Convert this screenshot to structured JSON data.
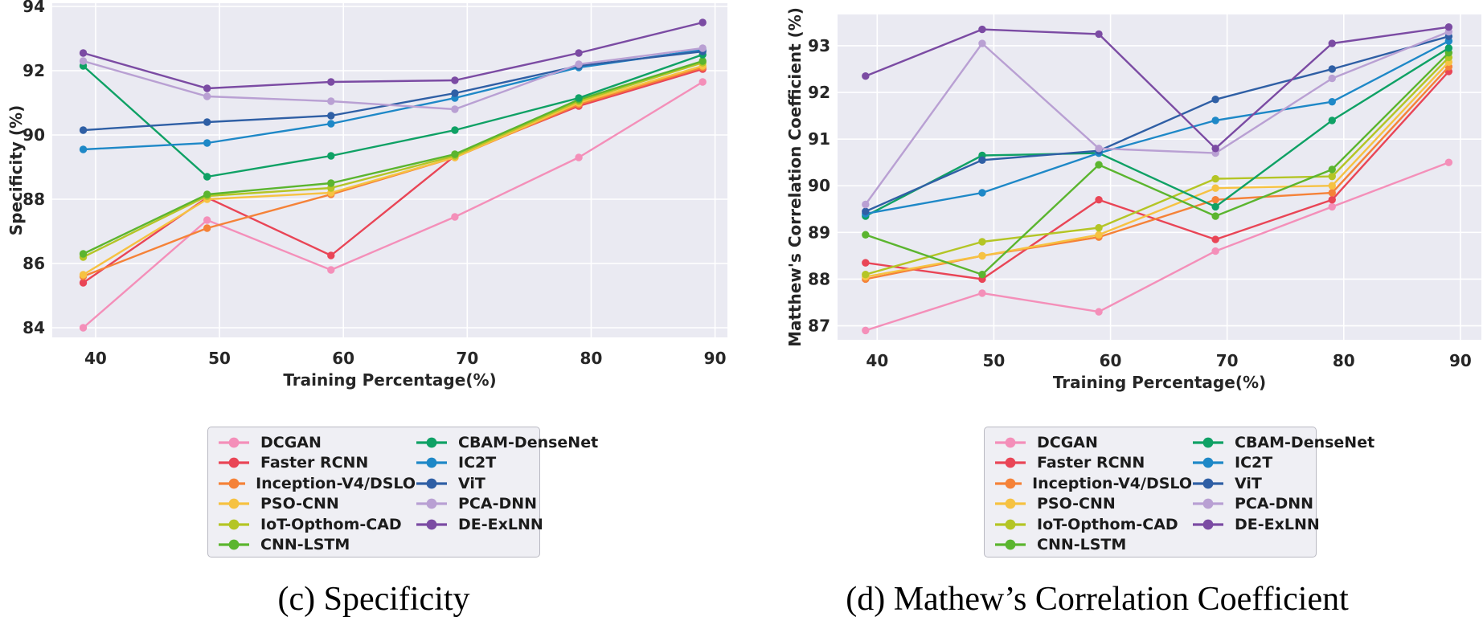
{
  "figure": {
    "background": "#ffffff",
    "plot_background": "#eaeaf2",
    "grid_color": "#ffffff",
    "tick_color": "#262626",
    "legend_background": "#efeff4",
    "legend_border": "#b9b9c2"
  },
  "chart_data": [
    {
      "type": "line",
      "caption": "(c) Specificity",
      "xlabel": "Training Percentage(%)",
      "ylabel": "Specificity (%)",
      "x": [
        39,
        49,
        59,
        69,
        79,
        89
      ],
      "xticks": [
        40,
        50,
        60,
        70,
        80,
        90
      ],
      "yticks": [
        84,
        86,
        88,
        90,
        92,
        94
      ],
      "xlim": [
        36.5,
        91.0
      ],
      "ylim": [
        83.7,
        94.1
      ],
      "grid": true,
      "legend_position": "below",
      "series": [
        {
          "name": "DCGAN",
          "color": "#F48FB9",
          "values": [
            84.0,
            87.35,
            85.8,
            87.45,
            89.3,
            91.65
          ]
        },
        {
          "name": "Faster RCNN",
          "color": "#E94556",
          "values": [
            85.4,
            88.05,
            86.25,
            89.35,
            90.9,
            92.05
          ]
        },
        {
          "name": "Inception-V4/DSLO",
          "color": "#F58238",
          "values": [
            85.6,
            87.1,
            88.15,
            89.3,
            90.95,
            92.1
          ]
        },
        {
          "name": "PSO-CNN",
          "color": "#F6C242",
          "values": [
            85.65,
            88.0,
            88.2,
            89.3,
            91.0,
            92.15
          ]
        },
        {
          "name": "IoT-Opthom-CAD",
          "color": "#B4C525",
          "values": [
            86.2,
            88.1,
            88.35,
            89.35,
            91.05,
            92.25
          ]
        },
        {
          "name": "CNN-LSTM",
          "color": "#5BB52F",
          "values": [
            86.3,
            88.15,
            88.5,
            89.4,
            91.1,
            92.3
          ]
        },
        {
          "name": "CBAM-DenseNet",
          "color": "#0FA165",
          "values": [
            92.15,
            88.7,
            89.35,
            90.15,
            91.15,
            92.5
          ]
        },
        {
          "name": "IC2T",
          "color": "#1E88C7",
          "values": [
            89.55,
            89.75,
            90.35,
            91.15,
            92.1,
            92.65
          ]
        },
        {
          "name": "ViT",
          "color": "#2F5FA5",
          "values": [
            90.15,
            90.4,
            90.6,
            91.3,
            92.15,
            92.6
          ]
        },
        {
          "name": "PCA-DNN",
          "color": "#B9A0D3",
          "values": [
            92.3,
            91.2,
            91.05,
            90.8,
            92.2,
            92.7
          ]
        },
        {
          "name": "DE-ExLNN",
          "color": "#7B4BA3",
          "values": [
            92.55,
            91.45,
            91.65,
            91.7,
            92.55,
            93.5
          ]
        }
      ]
    },
    {
      "type": "line",
      "caption": "(d) Mathew’s Correlation Coefficient",
      "xlabel": "Training Percentage(%)",
      "ylabel": "Matthew's Correlation Coefficient (%)",
      "x": [
        39,
        49,
        59,
        69,
        79,
        89
      ],
      "xticks": [
        40,
        50,
        60,
        70,
        80,
        90
      ],
      "yticks": [
        87,
        88,
        89,
        90,
        91,
        92,
        93
      ],
      "xlim": [
        36.6,
        91.8
      ],
      "ylim": [
        86.7,
        93.67
      ],
      "grid": true,
      "legend_position": "below",
      "series": [
        {
          "name": "DCGAN",
          "color": "#F48FB9",
          "values": [
            86.9,
            87.7,
            87.3,
            88.6,
            89.55,
            90.5
          ]
        },
        {
          "name": "Faster RCNN",
          "color": "#E94556",
          "values": [
            88.35,
            88.0,
            89.7,
            88.85,
            89.7,
            92.45
          ]
        },
        {
          "name": "Inception-V4/DSLO",
          "color": "#F58238",
          "values": [
            88.0,
            88.5,
            88.9,
            89.7,
            89.85,
            92.55
          ]
        },
        {
          "name": "PSO-CNN",
          "color": "#F6C242",
          "values": [
            88.05,
            88.5,
            88.95,
            89.95,
            90.0,
            92.65
          ]
        },
        {
          "name": "IoT-Opthom-CAD",
          "color": "#B4C525",
          "values": [
            88.1,
            88.8,
            89.1,
            90.15,
            90.2,
            92.75
          ]
        },
        {
          "name": "CNN-LSTM",
          "color": "#5BB52F",
          "values": [
            88.95,
            88.1,
            90.45,
            89.35,
            90.35,
            92.85
          ]
        },
        {
          "name": "CBAM-DenseNet",
          "color": "#0FA165",
          "values": [
            89.35,
            90.65,
            90.7,
            89.55,
            91.4,
            92.95
          ]
        },
        {
          "name": "IC2T",
          "color": "#1E88C7",
          "values": [
            89.4,
            89.85,
            90.7,
            91.4,
            91.8,
            93.1
          ]
        },
        {
          "name": "ViT",
          "color": "#2F5FA5",
          "values": [
            89.45,
            90.55,
            90.75,
            91.85,
            92.5,
            93.2
          ]
        },
        {
          "name": "PCA-DNN",
          "color": "#B9A0D3",
          "values": [
            89.6,
            93.05,
            90.8,
            90.7,
            92.3,
            93.3
          ]
        },
        {
          "name": "DE-ExLNN",
          "color": "#7B4BA3",
          "values": [
            92.35,
            93.35,
            93.25,
            90.8,
            93.05,
            93.4
          ]
        }
      ]
    }
  ]
}
